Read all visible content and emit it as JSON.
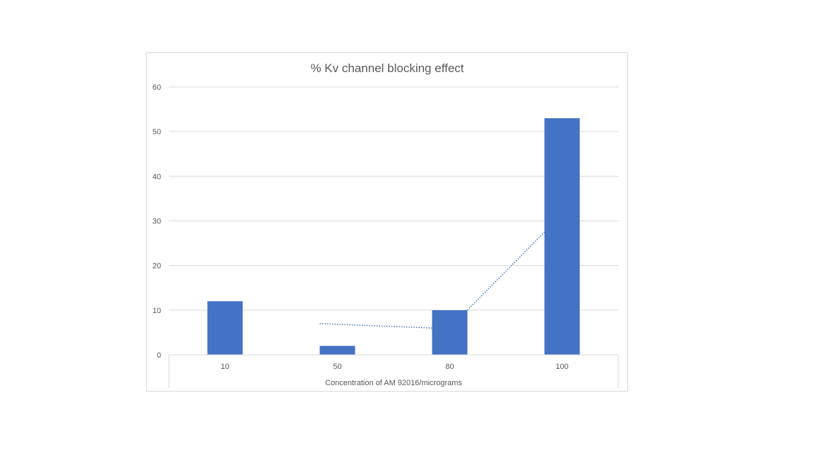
{
  "chart_data": {
    "type": "bar",
    "title": "% Kv channel blocking effect",
    "xlabel": "Concentration of AM 92016/micrograms",
    "ylabel": "",
    "categories": [
      "10",
      "50",
      "80",
      "100"
    ],
    "series": [
      {
        "values": [
          12,
          2,
          10,
          53
        ],
        "color": "#4472C4"
      }
    ],
    "trendline": {
      "style": "dotted",
      "kind": "moving-average",
      "color": "#4472C4",
      "values": [
        null,
        7,
        6,
        27.5
      ]
    },
    "ylim": [
      0,
      60
    ],
    "yticks": [
      0,
      10,
      20,
      30,
      40,
      50,
      60
    ],
    "grid": true,
    "legend": "none"
  }
}
